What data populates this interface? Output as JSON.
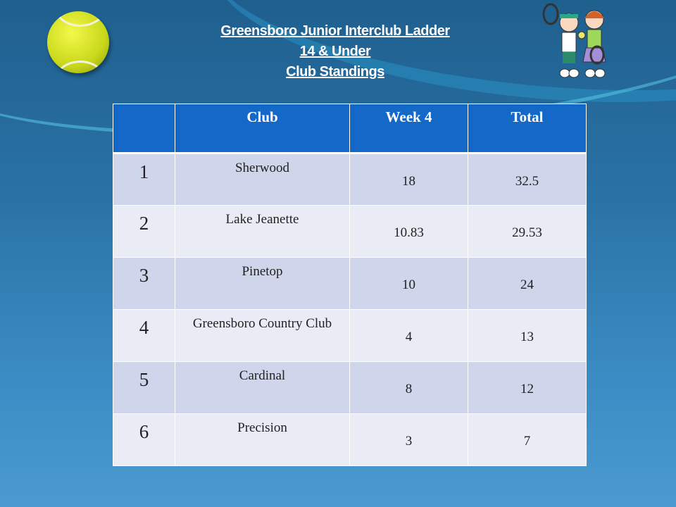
{
  "title": {
    "line1": "Greensboro Junior Interclub Ladder",
    "line2": "14 & Under",
    "line3": "Club Standings"
  },
  "table": {
    "headers": [
      "",
      "Club",
      "Week 4",
      "Total"
    ],
    "rows": [
      {
        "rank": "1",
        "club": "Sherwood",
        "week4": "18",
        "total": "32.5"
      },
      {
        "rank": "2",
        "club": "Lake Jeanette",
        "week4": "10.83",
        "total": "29.53"
      },
      {
        "rank": "3",
        "club": "Pinetop",
        "week4": "10",
        "total": "24"
      },
      {
        "rank": "4",
        "club": "Greensboro Country Club",
        "week4": "4",
        "total": "13"
      },
      {
        "rank": "5",
        "club": "Cardinal",
        "week4": "8",
        "total": "12"
      },
      {
        "rank": "6",
        "club": "Precision",
        "week4": "3",
        "total": "7"
      }
    ]
  },
  "colors": {
    "header": "#1368c8",
    "row_dark": "#cfd5ea",
    "row_light": "#e9ebf5",
    "background": "#2a73a6"
  }
}
